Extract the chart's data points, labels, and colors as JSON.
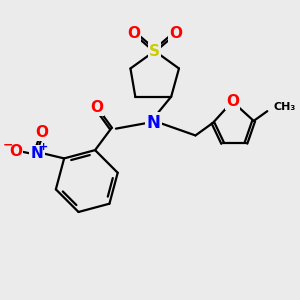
{
  "bg_color": "#ebebeb",
  "atom_colors": {
    "C": "#000000",
    "N": "#0000ff",
    "O": "#ff0000",
    "S": "#cccc00"
  },
  "bond_color": "#000000",
  "figsize": [
    3.0,
    3.0
  ],
  "dpi": 100,
  "lw": 1.6,
  "fs": 11
}
